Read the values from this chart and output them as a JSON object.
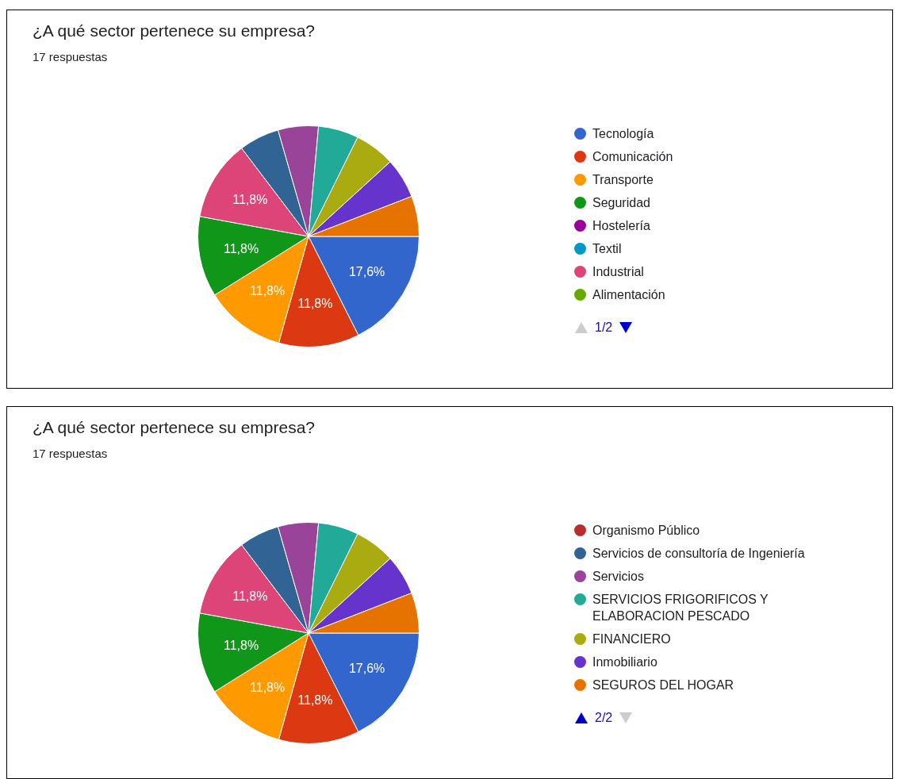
{
  "chart_data": [
    {
      "type": "pie",
      "title": "¿A qué sector pertenece su empresa?",
      "subtitle": "17 respuestas",
      "categories": [
        "Tecnología",
        "Comunicación",
        "Transporte",
        "Seguridad",
        "Hostelería",
        "Textil",
        "Industrial",
        "Alimentación",
        null,
        null,
        null,
        null,
        null,
        null,
        null
      ],
      "values": [
        17.6,
        11.8,
        11.8,
        11.8,
        0,
        0,
        11.8,
        0,
        0,
        5.9,
        5.9,
        5.9,
        5.9,
        5.9,
        5.9
      ],
      "value_labels": [
        "17,6%",
        "11,8%",
        "11,8%",
        "11,8%",
        null,
        null,
        "11,8%",
        null,
        null,
        null,
        null,
        null,
        null,
        null,
        null
      ],
      "colors": [
        "#3366cc",
        "#dc3912",
        "#ff9900",
        "#109618",
        "#990099",
        "#0099c6",
        "#dd4477",
        "#66aa00",
        "#b82e2e",
        "#316395",
        "#994499",
        "#22aa99",
        "#aaaa11",
        "#6633cc",
        "#e67300"
      ],
      "legend": "right",
      "annotations": [
        "1/2"
      ]
    },
    {
      "type": "pie",
      "title": "¿A qué sector pertenece su empresa?",
      "subtitle": "17 respuestas",
      "categories": [
        null,
        null,
        null,
        null,
        null,
        null,
        null,
        null,
        "Organismo Público",
        "Servicios de consultoría de Ingeniería",
        "Servicios",
        "SERVICIOS FRIGORIFICOS Y ELABORACION PESCADO",
        "FINANCIERO",
        "Inmobiliario",
        "SEGUROS DEL HOGAR"
      ],
      "values": [
        17.6,
        11.8,
        11.8,
        11.8,
        0,
        0,
        11.8,
        0,
        0,
        5.9,
        5.9,
        5.9,
        5.9,
        5.9,
        5.9
      ],
      "value_labels": [
        "17,6%",
        "11,8%",
        "11,8%",
        "11,8%",
        null,
        null,
        "11,8%",
        null,
        null,
        null,
        null,
        null,
        null,
        null,
        null
      ],
      "colors": [
        "#3366cc",
        "#dc3912",
        "#ff9900",
        "#109618",
        "#990099",
        "#0099c6",
        "#dd4477",
        "#66aa00",
        "#b82e2e",
        "#316395",
        "#994499",
        "#22aa99",
        "#aaaa11",
        "#6633cc",
        "#e67300"
      ],
      "legend": "right",
      "annotations": [
        "2/2"
      ]
    }
  ]
}
